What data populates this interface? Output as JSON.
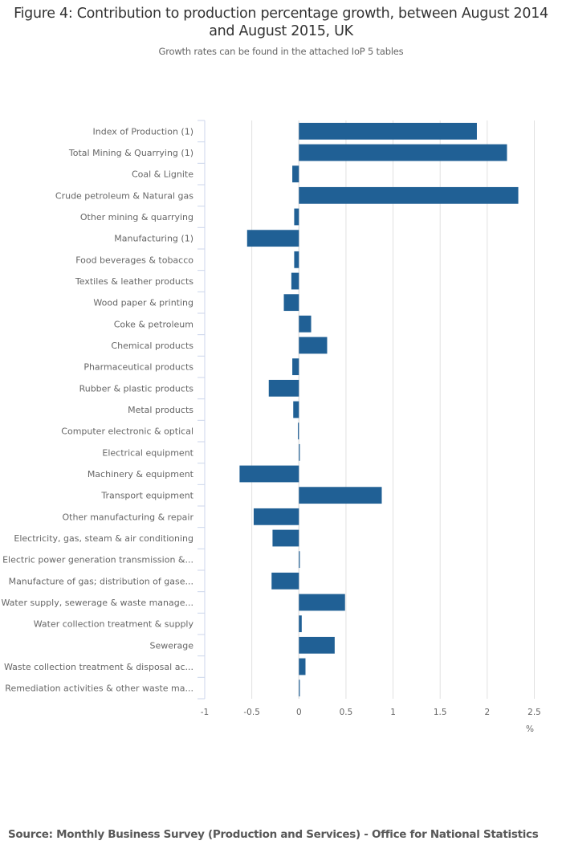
{
  "chart_data": {
    "type": "bar",
    "orientation": "horizontal",
    "title": "Figure 4: Contribution to production percentage growth, between August 2014 and August 2015, UK",
    "subtitle": "Growth rates can be found in the attached IoP 5 tables",
    "xlabel": "%",
    "ylabel": "",
    "xlim": [
      -1,
      2.5
    ],
    "xticks": [
      -1,
      -0.5,
      0,
      0.5,
      1,
      1.5,
      2,
      2.5
    ],
    "xtick_labels": [
      "-1",
      "-0.5",
      "0",
      "0.5",
      "1",
      "1.5",
      "2",
      "2.5"
    ],
    "grid": true,
    "bar_color": "#206095",
    "categories": [
      "Index of Production (1)",
      "Total Mining & Quarrying (1)",
      "Coal & Lignite",
      "Crude petroleum & Natural gas",
      "Other mining & quarrying",
      "Manufacturing (1)",
      "Food beverages & tobacco",
      "Textiles & leather products",
      "Wood paper & printing",
      "Coke & petroleum",
      "Chemical products",
      "Pharmaceutical products",
      "Rubber & plastic products",
      "Metal products",
      "Computer electronic & optical",
      "Electrical equipment",
      "Machinery & equipment",
      "Transport equipment",
      "Other manufacturing & repair",
      "Electricity, gas, steam & air conditioning",
      "Electric power generation transmission &...",
      "Manufacture of gas; distribution of gase...",
      "Water supply, sewerage & waste manage...",
      "Water collection treatment & supply",
      "Sewerage",
      "Waste collection treatment & disposal ac...",
      "Remediation activities & other waste ma..."
    ],
    "values": [
      1.89,
      2.21,
      -0.07,
      2.33,
      -0.05,
      -0.55,
      -0.05,
      -0.08,
      -0.16,
      0.13,
      0.3,
      -0.07,
      -0.32,
      -0.06,
      -0.01,
      0.01,
      -0.63,
      0.88,
      -0.48,
      -0.28,
      0.01,
      -0.29,
      0.49,
      0.03,
      0.38,
      0.07,
      0.01
    ]
  },
  "footer": {
    "source": "Source: Monthly Business Survey (Production and Services) - Office for National Statistics"
  }
}
